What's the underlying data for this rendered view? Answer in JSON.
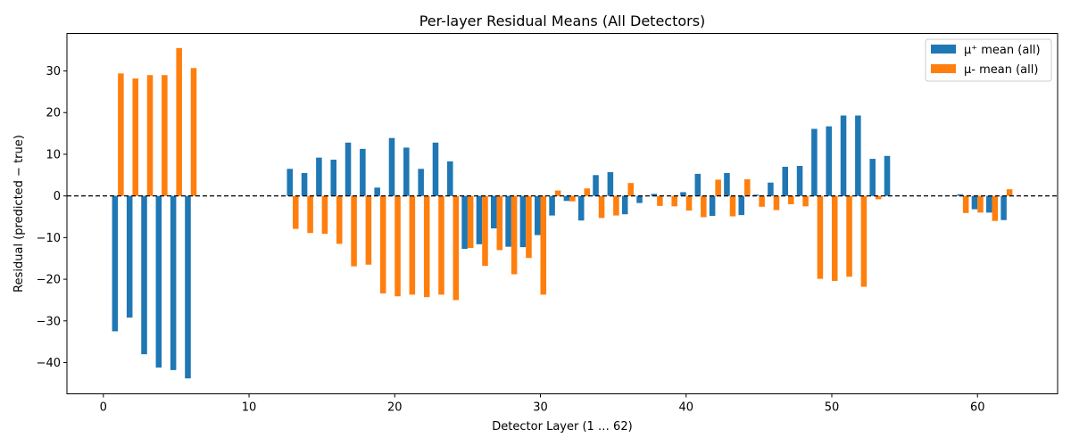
{
  "chart_data": {
    "type": "bar",
    "title": "Per-layer Residual Means (All Detectors)",
    "xlabel": "Detector Layer (1 … 62)",
    "ylabel": "Residual (predicted − true)",
    "xlim": [
      -2.5,
      65.5
    ],
    "ylim": [
      -47.5,
      39
    ],
    "xticks": [
      0,
      10,
      20,
      30,
      40,
      50,
      60
    ],
    "yticks": [
      -40,
      -30,
      -20,
      -10,
      0,
      10,
      20,
      30
    ],
    "legend_position": "top-right",
    "zero_line": "dashed",
    "x": [
      1,
      2,
      3,
      4,
      5,
      6,
      7,
      8,
      9,
      10,
      11,
      12,
      13,
      14,
      15,
      16,
      17,
      18,
      19,
      20,
      21,
      22,
      23,
      24,
      25,
      26,
      27,
      28,
      29,
      30,
      31,
      32,
      33,
      34,
      35,
      36,
      37,
      38,
      39,
      40,
      41,
      42,
      43,
      44,
      45,
      46,
      47,
      48,
      49,
      50,
      51,
      52,
      53,
      54,
      55,
      56,
      57,
      58,
      59,
      60,
      61,
      62
    ],
    "series": [
      {
        "name": "μ⁺ mean (all)",
        "color": "#1f77b4",
        "values": [
          -32.5,
          -29.2,
          -38,
          -41.2,
          -41.8,
          -43.8,
          0,
          0,
          0,
          0,
          0,
          0,
          6.5,
          5.5,
          9.2,
          8.7,
          12.8,
          11.3,
          2,
          13.9,
          11.6,
          6.5,
          12.8,
          8.3,
          -12.7,
          -11.6,
          -7.8,
          -12.2,
          -12.3,
          -9.4,
          -4.7,
          -1.2,
          -5.9,
          5,
          5.7,
          -4.4,
          -1.7,
          0.5,
          0,
          0.9,
          5.3,
          -4.8,
          5.5,
          -4.6,
          0.3,
          3.2,
          7,
          7.2,
          16.1,
          16.7,
          19.3,
          19.3,
          8.9,
          9.6,
          0,
          0,
          0,
          0,
          0.4,
          -3.2,
          -4,
          -5.8
        ]
      },
      {
        "name": "μ- mean (all)",
        "color": "#ff7f0e",
        "values": [
          29.4,
          28.2,
          29,
          29,
          35.5,
          30.7,
          0,
          0,
          0,
          0,
          0,
          0,
          -7.9,
          -8.9,
          -9.1,
          -11.5,
          -16.9,
          -16.5,
          -23.4,
          -24.1,
          -23.7,
          -24.3,
          -23.7,
          -25,
          -12.5,
          -16.8,
          -13,
          -18.8,
          -14.9,
          -23.7,
          1.3,
          -1.3,
          1.8,
          -5.3,
          -4.7,
          3.1,
          0,
          -2.4,
          -2.5,
          -3.5,
          -5.1,
          3.9,
          -4.9,
          4,
          -2.6,
          -3.4,
          -2,
          -2.5,
          -19.9,
          -20.4,
          -19.4,
          -21.8,
          -0.8,
          0,
          0,
          0,
          0,
          0,
          -4.1,
          -4,
          -6,
          1.6
        ]
      }
    ]
  }
}
